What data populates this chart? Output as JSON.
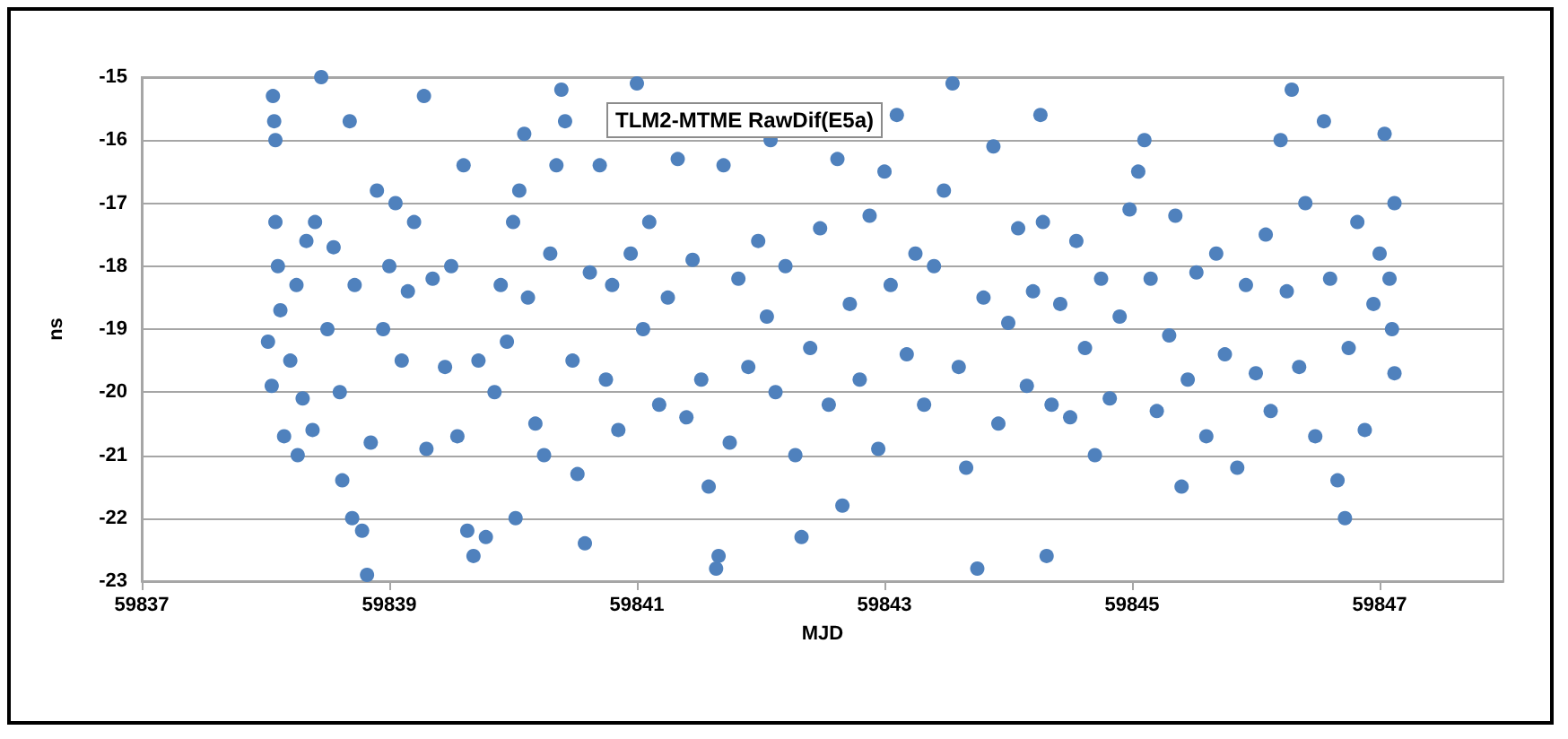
{
  "chart_data": {
    "type": "scatter",
    "title": "TLM2-MTME RawDif(E5a)",
    "xlabel": "MJD",
    "ylabel": "ns",
    "xlim": [
      59837,
      59848
    ],
    "xticks": [
      59837,
      59839,
      59841,
      59843,
      59845,
      59847
    ],
    "ylim": [
      -23,
      -15
    ],
    "yticks": [
      -23,
      -22,
      -21,
      -20,
      -19,
      -18,
      -17,
      -16,
      -15
    ],
    "grid": "y",
    "marker": "circle",
    "series": [
      {
        "color": "#4f81bd",
        "x": [
          59838.02,
          59838.05,
          59838.06,
          59838.07,
          59838.08,
          59838.08,
          59838.1,
          59838.12,
          59838.15,
          59838.2,
          59838.25,
          59838.26,
          59838.3,
          59838.33,
          59838.38,
          59838.4,
          59838.45,
          59838.5,
          59838.55,
          59838.6,
          59838.62,
          59838.68,
          59838.7,
          59838.72,
          59838.78,
          59838.82,
          59838.85,
          59838.9,
          59838.95,
          59839.0,
          59839.05,
          59839.1,
          59839.15,
          59839.2,
          59839.28,
          59839.3,
          59839.35,
          59839.45,
          59839.5,
          59839.55,
          59839.6,
          59839.63,
          59839.68,
          59839.72,
          59839.78,
          59839.85,
          59839.9,
          59839.95,
          59840.0,
          59840.02,
          59840.05,
          59840.09,
          59840.12,
          59840.18,
          59840.25,
          59840.3,
          59840.35,
          59840.39,
          59840.42,
          59840.48,
          59840.52,
          59840.58,
          59840.62,
          59840.7,
          59840.75,
          59840.8,
          59840.85,
          59840.95,
          59841.0,
          59841.05,
          59841.1,
          59841.18,
          59841.25,
          59841.33,
          59841.4,
          59841.45,
          59841.52,
          59841.58,
          59841.64,
          59841.66,
          59841.7,
          59841.75,
          59841.82,
          59841.9,
          59841.98,
          59842.05,
          59842.08,
          59842.12,
          59842.2,
          59842.28,
          59842.33,
          59842.4,
          59842.48,
          59842.55,
          59842.62,
          59842.66,
          59842.72,
          59842.8,
          59842.88,
          59842.95,
          59843.0,
          59843.05,
          59843.1,
          59843.18,
          59843.25,
          59843.32,
          59843.4,
          59843.48,
          59843.55,
          59843.6,
          59843.66,
          59843.75,
          59843.8,
          59843.88,
          59843.92,
          59844.0,
          59844.08,
          59844.15,
          59844.2,
          59844.26,
          59844.28,
          59844.31,
          59844.35,
          59844.42,
          59844.5,
          59844.55,
          59844.62,
          59844.7,
          59844.75,
          59844.82,
          59844.9,
          59844.98,
          59845.05,
          59845.1,
          59845.15,
          59845.2,
          59845.3,
          59845.35,
          59845.4,
          59845.45,
          59845.52,
          59845.6,
          59845.68,
          59845.75,
          59845.85,
          59845.92,
          59846.0,
          59846.08,
          59846.12,
          59846.2,
          59846.25,
          59846.29,
          59846.35,
          59846.4,
          59846.48,
          59846.55,
          59846.6,
          59846.66,
          59846.72,
          59846.75,
          59846.82,
          59846.88,
          59846.95,
          59847.0,
          59847.04,
          59847.08,
          59847.1,
          59847.12,
          59847.12
        ],
        "values": [
          -19.2,
          -19.9,
          -15.3,
          -15.7,
          -16.0,
          -17.3,
          -18.0,
          -18.7,
          -20.7,
          -19.5,
          -18.3,
          -21.0,
          -20.1,
          -17.6,
          -20.6,
          -17.3,
          -15.0,
          -19.0,
          -17.7,
          -20.0,
          -21.4,
          -15.7,
          -22.0,
          -18.3,
          -22.2,
          -22.9,
          -20.8,
          -16.8,
          -19.0,
          -18.0,
          -17.0,
          -19.5,
          -18.4,
          -17.3,
          -15.3,
          -20.9,
          -18.2,
          -19.6,
          -18.0,
          -20.7,
          -16.4,
          -22.2,
          -22.6,
          -19.5,
          -22.3,
          -20.0,
          -18.3,
          -19.2,
          -17.3,
          -22.0,
          -16.8,
          -15.9,
          -18.5,
          -20.5,
          -21.0,
          -17.8,
          -16.4,
          -15.2,
          -15.7,
          -19.5,
          -21.3,
          -22.4,
          -18.1,
          -16.4,
          -19.8,
          -18.3,
          -20.6,
          -17.8,
          -15.1,
          -19.0,
          -17.3,
          -20.2,
          -18.5,
          -16.3,
          -20.4,
          -17.9,
          -19.8,
          -21.5,
          -22.8,
          -22.6,
          -16.4,
          -20.8,
          -18.2,
          -19.6,
          -17.6,
          -18.8,
          -16.0,
          -20.0,
          -18.0,
          -21.0,
          -22.3,
          -19.3,
          -17.4,
          -20.2,
          -16.3,
          -21.8,
          -18.6,
          -19.8,
          -17.2,
          -20.9,
          -16.5,
          -18.3,
          -15.6,
          -19.4,
          -17.8,
          -20.2,
          -18.0,
          -16.8,
          -15.1,
          -19.6,
          -21.2,
          -22.8,
          -18.5,
          -16.1,
          -20.5,
          -18.9,
          -17.4,
          -19.9,
          -18.4,
          -15.6,
          -17.3,
          -22.6,
          -20.2,
          -18.6,
          -20.4,
          -17.6,
          -19.3,
          -21.0,
          -18.2,
          -20.1,
          -18.8,
          -17.1,
          -16.5,
          -16.0,
          -18.2,
          -20.3,
          -19.1,
          -17.2,
          -21.5,
          -19.8,
          -18.1,
          -20.7,
          -17.8,
          -19.4,
          -21.2,
          -18.3,
          -19.7,
          -17.5,
          -20.3,
          -16.0,
          -18.4,
          -15.2,
          -19.6,
          -17.0,
          -20.7,
          -15.7,
          -18.2,
          -21.4,
          -22.0,
          -19.3,
          -17.3,
          -20.6,
          -18.6,
          -17.8,
          -15.9,
          -18.2,
          -19.0,
          -17.0,
          -19.7
        ]
      }
    ]
  }
}
